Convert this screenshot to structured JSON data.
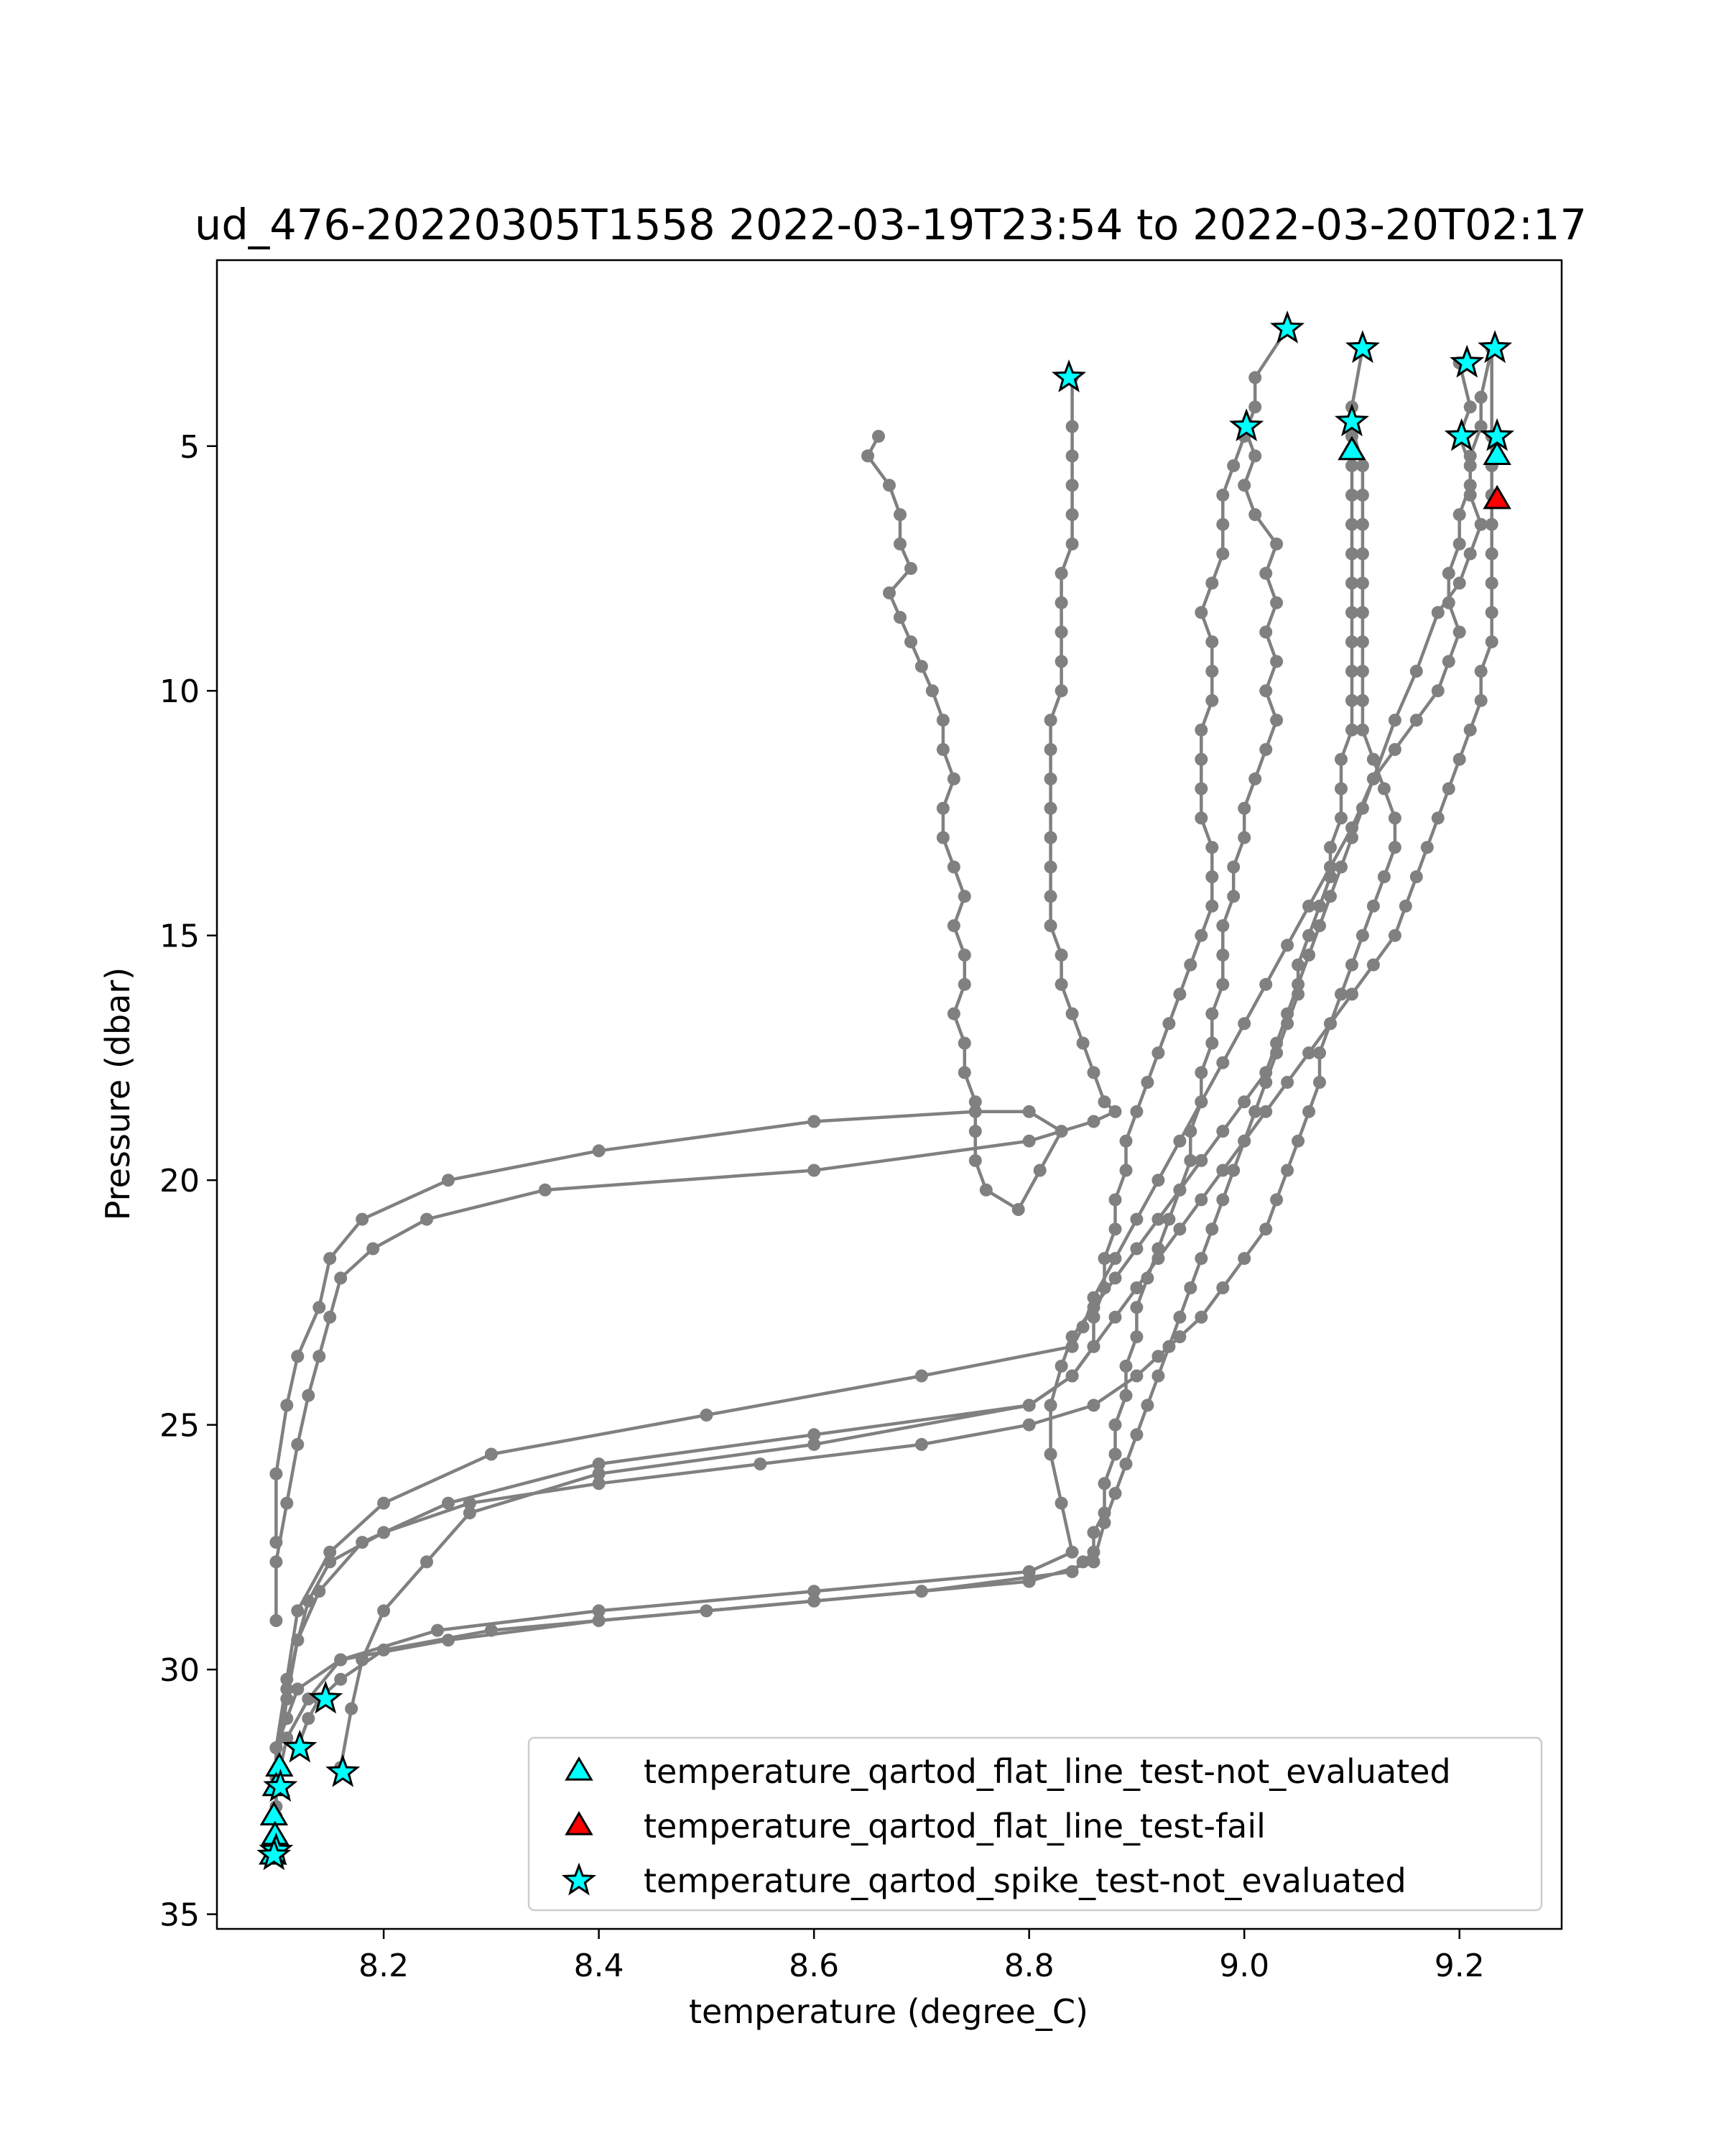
{
  "chart_data": {
    "type": "scatter",
    "title": "ud_476-20220305T1558 2022-03-19T23:54 to 2022-03-20T02:17",
    "xlabel": "temperature (degree_C)",
    "ylabel": "Pressure (dbar)",
    "xlim": [
      8.045,
      9.295
    ],
    "ylim": [
      35.3,
      1.2
    ],
    "y_inverted": true,
    "grid": false,
    "legend_placement": "lower right",
    "xticks": [
      8.2,
      8.4,
      8.6,
      8.8,
      9.0,
      9.2
    ],
    "xtick_labels": [
      "8.2",
      "8.4",
      "8.6",
      "8.8",
      "9.0",
      "9.2"
    ],
    "yticks": [
      5,
      10,
      15,
      20,
      25,
      30,
      35
    ],
    "ytick_labels": [
      "5",
      "10",
      "15",
      "20",
      "25",
      "30",
      "35"
    ],
    "colors": {
      "profile_line": "#808080",
      "not_evaluated": "#00ffff",
      "fail": "#ff0000",
      "edge": "#000000"
    },
    "profiles": [
      {
        "temperature": [
          8.66,
          8.65,
          8.67,
          8.68,
          8.68,
          8.69,
          8.67,
          8.68,
          8.69,
          8.7,
          8.71,
          8.72,
          8.72,
          8.73,
          8.72,
          8.72,
          8.73,
          8.74,
          8.73,
          8.74,
          8.74,
          8.73,
          8.74,
          8.74,
          8.75,
          8.75,
          8.75,
          8.76,
          8.79,
          8.81,
          8.83,
          8.8,
          8.75,
          8.6,
          8.4,
          8.26,
          8.18,
          8.15,
          8.14,
          8.12,
          8.11,
          8.1,
          8.1
        ],
        "pressure": [
          4.8,
          5.2,
          5.8,
          6.4,
          7.0,
          7.5,
          8.0,
          8.5,
          9.0,
          9.5,
          10.0,
          10.6,
          11.2,
          11.8,
          12.4,
          13.0,
          13.6,
          14.2,
          14.8,
          15.4,
          16.0,
          16.6,
          17.2,
          17.8,
          18.4,
          19.0,
          19.6,
          20.2,
          20.6,
          19.8,
          19.0,
          18.6,
          18.6,
          18.8,
          19.4,
          20.0,
          20.8,
          21.6,
          22.6,
          23.6,
          24.6,
          26.0,
          27.4
        ]
      },
      {
        "temperature": [
          8.84,
          8.84,
          8.84,
          8.84,
          8.84,
          8.84,
          8.83,
          8.83,
          8.83,
          8.83,
          8.83,
          8.82,
          8.82,
          8.82,
          8.82,
          8.82,
          8.82,
          8.82,
          8.82,
          8.83,
          8.83,
          8.84,
          8.85,
          8.86,
          8.87,
          8.88,
          8.86,
          8.8,
          8.6,
          8.35,
          8.24,
          8.19,
          8.16,
          8.15,
          8.14,
          8.13,
          8.12,
          8.11,
          8.1,
          8.1
        ],
        "pressure": [
          3.6,
          4.6,
          5.2,
          5.8,
          6.4,
          7.0,
          7.6,
          8.2,
          8.8,
          9.4,
          10.0,
          10.6,
          11.2,
          11.8,
          12.4,
          13.0,
          13.6,
          14.2,
          14.8,
          15.4,
          16.0,
          16.6,
          17.2,
          17.8,
          18.4,
          18.6,
          18.8,
          19.2,
          19.8,
          20.2,
          20.8,
          21.4,
          22.0,
          22.8,
          23.6,
          24.4,
          25.4,
          26.6,
          27.8,
          29.0
        ]
      },
      {
        "temperature": [
          9.04,
          9.01,
          9.01,
          9.0,
          8.99,
          8.98,
          8.98,
          8.98,
          8.97,
          8.96,
          8.97,
          8.97,
          8.97,
          8.96,
          8.96,
          8.96,
          8.96,
          8.97,
          8.97,
          8.97,
          8.96,
          8.95,
          8.94,
          8.93,
          8.92,
          8.91,
          8.9,
          8.89,
          8.89,
          8.88,
          8.88,
          8.87,
          8.87,
          8.86,
          8.86,
          8.84,
          8.8,
          8.6,
          8.4,
          8.28,
          8.24,
          8.2,
          8.18,
          8.17,
          8.16
        ],
        "pressure": [
          2.6,
          3.6,
          4.2,
          4.8,
          5.4,
          6.0,
          6.6,
          7.2,
          7.8,
          8.4,
          9.0,
          9.6,
          10.2,
          10.8,
          11.4,
          12.0,
          12.6,
          13.2,
          13.8,
          14.4,
          15.0,
          15.6,
          16.2,
          16.8,
          17.4,
          18.0,
          18.6,
          19.2,
          19.8,
          20.4,
          21.0,
          21.6,
          22.2,
          22.8,
          23.4,
          24.0,
          24.6,
          25.4,
          26.0,
          26.8,
          27.8,
          28.8,
          29.8,
          30.8,
          32.0
        ]
      },
      {
        "temperature": [
          9.0,
          9.01,
          9.0,
          9.01,
          9.03,
          9.02,
          9.03,
          9.02,
          9.03,
          9.02,
          9.03,
          9.02,
          9.01,
          9.0,
          9.0,
          8.99,
          8.99,
          8.98,
          8.98,
          8.98,
          8.97,
          8.97,
          8.96,
          8.96,
          8.95,
          8.95,
          8.94,
          8.93,
          8.92,
          8.91,
          8.9,
          8.9,
          8.89,
          8.89,
          8.88,
          8.88,
          8.87,
          8.87,
          8.86,
          8.86,
          8.85,
          8.84,
          8.7,
          8.5,
          8.3,
          8.2,
          8.16,
          8.14,
          8.13,
          8.12
        ],
        "pressure": [
          4.6,
          5.2,
          5.8,
          6.4,
          7.0,
          7.6,
          8.2,
          8.8,
          9.4,
          10.0,
          10.6,
          11.2,
          11.8,
          12.4,
          13.0,
          13.6,
          14.2,
          14.8,
          15.4,
          16.0,
          16.6,
          17.2,
          17.8,
          18.4,
          19.0,
          19.6,
          20.2,
          20.8,
          21.4,
          22.0,
          22.6,
          23.2,
          23.8,
          24.4,
          25.0,
          25.6,
          26.2,
          26.8,
          27.2,
          27.6,
          27.8,
          28.0,
          28.4,
          28.8,
          29.2,
          29.6,
          30.2,
          30.6,
          31.0,
          31.6
        ]
      },
      {
        "temperature": [
          9.11,
          9.1,
          9.1,
          9.1,
          9.1,
          9.1,
          9.1,
          9.1,
          9.1,
          9.1,
          9.1,
          9.1,
          9.1,
          9.09,
          9.09,
          9.09,
          9.08,
          9.08,
          9.07,
          9.06,
          9.05,
          9.05,
          9.04,
          9.03,
          9.02,
          9.01,
          9.0,
          8.99,
          8.98,
          8.97,
          8.96,
          8.95,
          8.94,
          8.93,
          8.92,
          8.91,
          8.9,
          8.89,
          8.88,
          8.87,
          8.86,
          8.8,
          8.6,
          8.4,
          8.26,
          8.16,
          8.12,
          8.11,
          8.1,
          8.1,
          8.1
        ],
        "pressure": [
          3.0,
          4.2,
          4.8,
          5.4,
          6.0,
          6.6,
          7.2,
          7.8,
          8.4,
          9.0,
          9.6,
          10.2,
          10.8,
          11.4,
          12.0,
          12.6,
          13.2,
          13.8,
          14.4,
          15.0,
          15.6,
          16.2,
          16.8,
          17.4,
          18.0,
          18.6,
          19.2,
          19.8,
          20.4,
          21.0,
          21.6,
          22.2,
          22.8,
          23.4,
          24.0,
          24.6,
          25.2,
          25.8,
          26.4,
          27.0,
          27.8,
          28.2,
          28.6,
          29.0,
          29.4,
          29.8,
          30.4,
          31.0,
          31.6,
          32.2,
          32.8
        ]
      },
      {
        "temperature": [
          9.1,
          9.11,
          9.11,
          9.11,
          9.11,
          9.11,
          9.11,
          9.11,
          9.11,
          9.11,
          9.11,
          9.12,
          9.13,
          9.14,
          9.14,
          9.13,
          9.12,
          9.11,
          9.1,
          9.09,
          9.08,
          9.07,
          9.07,
          9.06,
          9.05,
          9.04,
          9.03,
          9.02,
          9.0,
          8.98,
          8.96,
          8.94,
          8.92,
          8.9,
          8.86,
          8.8,
          8.7,
          8.55,
          8.4,
          8.28,
          8.2,
          8.15,
          8.13,
          8.12,
          8.11,
          8.1,
          8.1
        ],
        "pressure": [
          4.6,
          5.4,
          6.0,
          6.6,
          7.2,
          7.8,
          8.4,
          9.0,
          9.6,
          10.2,
          10.8,
          11.4,
          12.0,
          12.6,
          13.2,
          13.8,
          14.4,
          15.0,
          15.6,
          16.2,
          16.8,
          17.4,
          18.0,
          18.6,
          19.2,
          19.8,
          20.4,
          21.0,
          21.6,
          22.2,
          22.8,
          23.2,
          23.6,
          24.0,
          24.6,
          25.0,
          25.4,
          25.8,
          26.2,
          26.6,
          27.2,
          27.8,
          28.6,
          29.4,
          30.4,
          31.6,
          33.0
        ]
      },
      {
        "temperature": [
          9.23,
          9.22,
          9.22,
          9.21,
          9.21,
          9.2,
          9.2,
          9.19,
          9.19,
          9.2,
          9.19,
          9.18,
          9.16,
          9.14,
          9.12,
          9.11,
          9.1,
          9.09,
          9.08,
          9.07,
          9.06,
          9.05,
          9.04,
          9.03,
          9.02,
          9.0,
          8.98,
          8.96,
          8.94,
          8.92,
          8.9,
          8.88,
          8.86,
          8.84,
          8.83,
          8.82,
          8.82,
          8.83,
          8.84,
          8.8,
          8.6,
          8.4,
          8.25,
          8.16,
          8.13,
          8.11,
          8.1,
          8.1
        ],
        "pressure": [
          3.0,
          4.0,
          4.6,
          5.2,
          5.8,
          6.4,
          7.0,
          7.6,
          8.2,
          8.8,
          9.4,
          10.0,
          10.6,
          11.2,
          11.8,
          12.4,
          13.0,
          13.6,
          14.2,
          14.8,
          15.4,
          16.0,
          16.6,
          17.2,
          17.8,
          18.4,
          19.0,
          19.6,
          20.2,
          20.8,
          21.4,
          22.0,
          22.6,
          23.2,
          23.8,
          24.6,
          25.6,
          26.6,
          27.6,
          28.0,
          28.4,
          28.8,
          29.2,
          29.8,
          30.6,
          31.4,
          32.4,
          33.8
        ]
      },
      {
        "temperature": [
          9.2,
          9.21,
          9.2,
          9.21,
          9.21,
          9.22,
          9.21,
          9.2,
          9.18,
          9.16,
          9.14,
          9.12,
          9.1,
          9.08,
          9.06,
          9.04,
          9.02,
          9.0,
          8.98,
          8.96,
          8.94,
          8.92,
          8.9,
          8.88,
          8.86,
          8.85,
          8.84,
          8.7,
          8.5,
          8.3,
          8.2,
          8.15,
          8.12,
          8.11,
          8.1,
          8.1
        ],
        "pressure": [
          3.3,
          4.2,
          4.8,
          5.4,
          6.0,
          6.6,
          7.2,
          7.8,
          8.4,
          9.6,
          10.6,
          11.8,
          12.8,
          13.6,
          14.4,
          15.2,
          16.0,
          16.8,
          17.6,
          18.4,
          19.2,
          20.0,
          20.8,
          21.6,
          22.4,
          23.0,
          23.4,
          24.0,
          24.8,
          25.6,
          26.6,
          27.6,
          28.8,
          30.2,
          31.6,
          32.4
        ]
      },
      {
        "temperature": [
          9.23,
          9.23,
          9.23,
          9.23,
          9.23,
          9.23,
          9.23,
          9.23,
          9.23,
          9.22,
          9.22,
          9.21,
          9.2,
          9.19,
          9.18,
          9.17,
          9.16,
          9.15,
          9.14,
          9.12,
          9.1,
          9.08,
          9.06,
          9.04,
          9.02,
          9.0,
          8.98,
          8.96,
          8.94,
          8.92,
          8.9,
          8.88,
          8.86,
          8.84,
          8.8,
          8.6,
          8.4,
          8.26,
          8.18,
          8.14,
          8.12,
          8.11,
          8.1
        ],
        "pressure": [
          3.0,
          4.8,
          5.4,
          6.0,
          6.6,
          7.2,
          7.8,
          8.4,
          9.0,
          9.6,
          10.2,
          10.8,
          11.4,
          12.0,
          12.6,
          13.2,
          13.8,
          14.4,
          15.0,
          15.6,
          16.2,
          16.8,
          17.4,
          18.0,
          18.6,
          19.2,
          19.8,
          20.4,
          21.0,
          21.6,
          22.2,
          22.8,
          23.4,
          24.0,
          24.6,
          25.2,
          25.8,
          26.6,
          27.4,
          28.4,
          29.4,
          30.6,
          32.2
        ]
      }
    ],
    "series": [
      {
        "name": "temperature_qartod_flat_line_test-not_evaluated",
        "marker": "triangle",
        "color": "#00ffff",
        "temperature": [
          9.1,
          9.235,
          8.103,
          8.1,
          8.098,
          8.099,
          8.097
        ],
        "pressure": [
          5.1,
          5.2,
          32.0,
          32.4,
          33.0,
          33.4,
          33.8
        ]
      },
      {
        "name": "temperature_qartod_flat_line_test-fail",
        "marker": "triangle",
        "color": "#ff0000",
        "temperature": [
          9.235
        ],
        "pressure": [
          6.1
        ]
      },
      {
        "name": "temperature_qartod_spike_test-not_evaluated",
        "marker": "star",
        "color": "#00ffff",
        "temperature": [
          8.837,
          9.04,
          9.002,
          9.11,
          9.1,
          9.207,
          9.233,
          9.202,
          9.235,
          8.146,
          8.122,
          8.162,
          8.104,
          8.1,
          8.098
        ],
        "pressure": [
          3.6,
          2.6,
          4.6,
          3.0,
          4.5,
          3.3,
          3.0,
          4.8,
          4.8,
          30.6,
          31.6,
          32.1,
          32.4,
          33.7,
          33.8
        ]
      }
    ]
  }
}
